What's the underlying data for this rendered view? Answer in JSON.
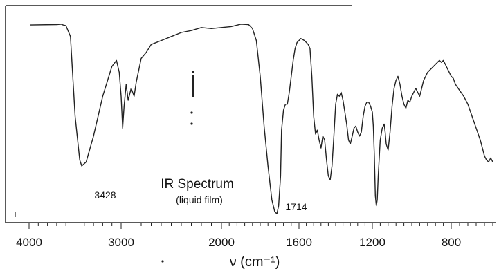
{
  "chart_data": {
    "type": "line",
    "title": "IR Spectrum",
    "subtitle": "(liquid film)",
    "xlabel": "ν (cm⁻¹)",
    "x_ticks": [
      "4000",
      "3000",
      "2000",
      "1600",
      "1200",
      "800"
    ],
    "annotations": [
      {
        "text": "3428",
        "x": 3428
      },
      {
        "text": "1714",
        "x": 1714
      }
    ],
    "series": [
      {
        "values": [
          [
            3700,
            0.96
          ],
          [
            3650,
            0.962
          ],
          [
            3630,
            0.958
          ],
          [
            3600,
            0.955
          ],
          [
            3550,
            0.9
          ],
          [
            3500,
            0.5
          ],
          [
            3450,
            0.28
          ],
          [
            3428,
            0.25
          ],
          [
            3380,
            0.27
          ],
          [
            3300,
            0.4
          ],
          [
            3200,
            0.6
          ],
          [
            3100,
            0.75
          ],
          [
            3050,
            0.78
          ],
          [
            3020,
            0.72
          ],
          [
            3000,
            0.6
          ],
          [
            2985,
            0.44
          ],
          [
            2970,
            0.55
          ],
          [
            2950,
            0.66
          ],
          [
            2930,
            0.58
          ],
          [
            2900,
            0.64
          ],
          [
            2870,
            0.6
          ],
          [
            2850,
            0.67
          ],
          [
            2800,
            0.79
          ],
          [
            2750,
            0.82
          ],
          [
            2700,
            0.86
          ],
          [
            2600,
            0.88
          ],
          [
            2500,
            0.9
          ],
          [
            2400,
            0.92
          ],
          [
            2300,
            0.93
          ],
          [
            2200,
            0.945
          ],
          [
            2100,
            0.94
          ],
          [
            2000,
            0.945
          ],
          [
            1950,
            0.95
          ],
          [
            1900,
            0.962
          ],
          [
            1860,
            0.96
          ],
          [
            1840,
            0.94
          ],
          [
            1820,
            0.88
          ],
          [
            1800,
            0.7
          ],
          [
            1780,
            0.45
          ],
          [
            1760,
            0.25
          ],
          [
            1740,
            0.08
          ],
          [
            1725,
            0.02
          ],
          [
            1714,
            0.01
          ],
          [
            1705,
            0.05
          ],
          [
            1695,
            0.2
          ],
          [
            1690,
            0.43
          ],
          [
            1680,
            0.53
          ],
          [
            1670,
            0.56
          ],
          [
            1660,
            0.56
          ],
          [
            1650,
            0.62
          ],
          [
            1640,
            0.7
          ],
          [
            1630,
            0.78
          ],
          [
            1620,
            0.84
          ],
          [
            1610,
            0.87
          ],
          [
            1600,
            0.88
          ],
          [
            1590,
            0.89
          ],
          [
            1580,
            0.885
          ],
          [
            1570,
            0.88
          ],
          [
            1560,
            0.87
          ],
          [
            1550,
            0.86
          ],
          [
            1540,
            0.84
          ],
          [
            1530,
            0.7
          ],
          [
            1520,
            0.5
          ],
          [
            1510,
            0.41
          ],
          [
            1500,
            0.43
          ],
          [
            1490,
            0.38
          ],
          [
            1480,
            0.34
          ],
          [
            1470,
            0.4
          ],
          [
            1460,
            0.38
          ],
          [
            1450,
            0.28
          ],
          [
            1440,
            0.2
          ],
          [
            1430,
            0.18
          ],
          [
            1420,
            0.25
          ],
          [
            1410,
            0.4
          ],
          [
            1400,
            0.56
          ],
          [
            1390,
            0.61
          ],
          [
            1380,
            0.6
          ],
          [
            1370,
            0.62
          ],
          [
            1360,
            0.58
          ],
          [
            1350,
            0.52
          ],
          [
            1340,
            0.46
          ],
          [
            1330,
            0.38
          ],
          [
            1320,
            0.36
          ],
          [
            1310,
            0.4
          ],
          [
            1300,
            0.44
          ],
          [
            1290,
            0.45
          ],
          [
            1280,
            0.42
          ],
          [
            1270,
            0.4
          ],
          [
            1260,
            0.42
          ],
          [
            1250,
            0.5
          ],
          [
            1240,
            0.55
          ],
          [
            1230,
            0.57
          ],
          [
            1220,
            0.57
          ],
          [
            1210,
            0.55
          ],
          [
            1200,
            0.52
          ],
          [
            1195,
            0.45
          ],
          [
            1190,
            0.3
          ],
          [
            1185,
            0.1
          ],
          [
            1180,
            0.05
          ],
          [
            1175,
            0.08
          ],
          [
            1170,
            0.2
          ],
          [
            1160,
            0.38
          ],
          [
            1150,
            0.44
          ],
          [
            1140,
            0.46
          ],
          [
            1135,
            0.42
          ],
          [
            1130,
            0.36
          ],
          [
            1120,
            0.33
          ],
          [
            1110,
            0.42
          ],
          [
            1100,
            0.55
          ],
          [
            1090,
            0.64
          ],
          [
            1080,
            0.68
          ],
          [
            1070,
            0.7
          ],
          [
            1060,
            0.66
          ],
          [
            1050,
            0.6
          ],
          [
            1040,
            0.56
          ],
          [
            1030,
            0.54
          ],
          [
            1020,
            0.58
          ],
          [
            1010,
            0.57
          ],
          [
            1000,
            0.6
          ],
          [
            990,
            0.62
          ],
          [
            980,
            0.64
          ],
          [
            970,
            0.62
          ],
          [
            960,
            0.6
          ],
          [
            950,
            0.64
          ],
          [
            940,
            0.68
          ],
          [
            930,
            0.7
          ],
          [
            920,
            0.72
          ],
          [
            910,
            0.73
          ],
          [
            900,
            0.74
          ],
          [
            880,
            0.76
          ],
          [
            860,
            0.78
          ],
          [
            850,
            0.77
          ],
          [
            840,
            0.78
          ],
          [
            830,
            0.76
          ],
          [
            820,
            0.74
          ],
          [
            810,
            0.72
          ],
          [
            800,
            0.7
          ],
          [
            790,
            0.69
          ],
          [
            780,
            0.66
          ],
          [
            760,
            0.63
          ],
          [
            740,
            0.6
          ],
          [
            720,
            0.56
          ],
          [
            700,
            0.5
          ],
          [
            680,
            0.44
          ],
          [
            660,
            0.38
          ],
          [
            650,
            0.34
          ],
          [
            640,
            0.3
          ],
          [
            630,
            0.28
          ],
          [
            620,
            0.27
          ],
          [
            610,
            0.29
          ],
          [
            600,
            0.27
          ]
        ]
      }
    ]
  }
}
